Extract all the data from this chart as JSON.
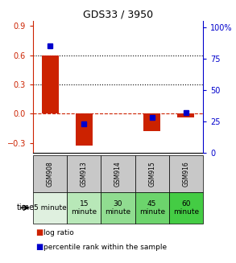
{
  "title": "GDS33 / 3950",
  "samples": [
    "GSM908",
    "GSM913",
    "GSM914",
    "GSM915",
    "GSM916"
  ],
  "time_labels_line1": [
    "5 minute",
    "15",
    "30",
    "45",
    "60"
  ],
  "time_labels_line2": [
    "",
    "minute",
    "minute",
    "minute",
    "minute"
  ],
  "log_ratio": [
    0.6,
    -0.33,
    0.0,
    -0.18,
    -0.04
  ],
  "percentile_rank": [
    85,
    23,
    null,
    28,
    32
  ],
  "log_ratio_color": "#cc2200",
  "percentile_color": "#0000cc",
  "ylim_left": [
    -0.4,
    0.95
  ],
  "ylim_right": [
    0,
    105
  ],
  "yticks_left": [
    -0.3,
    0.0,
    0.3,
    0.6,
    0.9
  ],
  "yticks_right": [
    0,
    25,
    50,
    75,
    100
  ],
  "bar_width": 0.5,
  "bg_color": "#ffffff",
  "cell_color_gsm": "#c8c8c8",
  "cell_colors_time": [
    "#dff0df",
    "#b8e8b8",
    "#90dc90",
    "#6cd46c",
    "#44cc44"
  ],
  "legend_log_ratio": "log ratio",
  "legend_percentile": "percentile rank within the sample",
  "title_fontsize": 9,
  "tick_fontsize": 7,
  "label_fontsize": 6.5,
  "gsm_fontsize": 5.5,
  "time_fontsize": 6.5
}
